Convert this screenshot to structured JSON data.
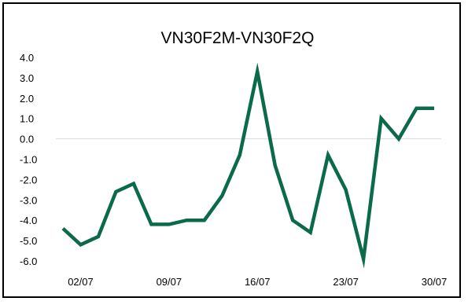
{
  "chart_data": {
    "type": "line",
    "title": "VN30F2M-VN30F2Q",
    "xlabel": "",
    "ylabel": "",
    "ylim": [
      -6.0,
      4.0
    ],
    "yticks": [
      "4.0",
      "3.0",
      "2.0",
      "1.0",
      "0.0",
      "-1.0",
      "-2.0",
      "-3.0",
      "-4.0",
      "-5.0",
      "-6.0"
    ],
    "xticks": [
      "02/07",
      "09/07",
      "16/07",
      "23/07",
      "30/07"
    ],
    "grid": false,
    "legend": "none",
    "color": "#0b6a4a",
    "series": [
      {
        "x": [
          "01/07",
          "02/07",
          "03/07",
          "04/07",
          "07/07",
          "08/07",
          "09/07",
          "10/07",
          "11/07",
          "14/07",
          "15/07",
          "16/07",
          "17/07",
          "18/07",
          "21/07",
          "22/07",
          "23/07",
          "24/07",
          "25/07",
          "28/07",
          "29/07",
          "30/07"
        ],
        "values": [
          -4.4,
          -5.2,
          -4.8,
          -2.6,
          -2.2,
          -4.2,
          -4.2,
          -4.0,
          -4.0,
          -2.8,
          -0.8,
          3.3,
          -1.3,
          -4.0,
          -4.6,
          -0.8,
          -2.5,
          -5.9,
          1.0,
          0.0,
          1.5,
          1.5
        ]
      }
    ]
  }
}
